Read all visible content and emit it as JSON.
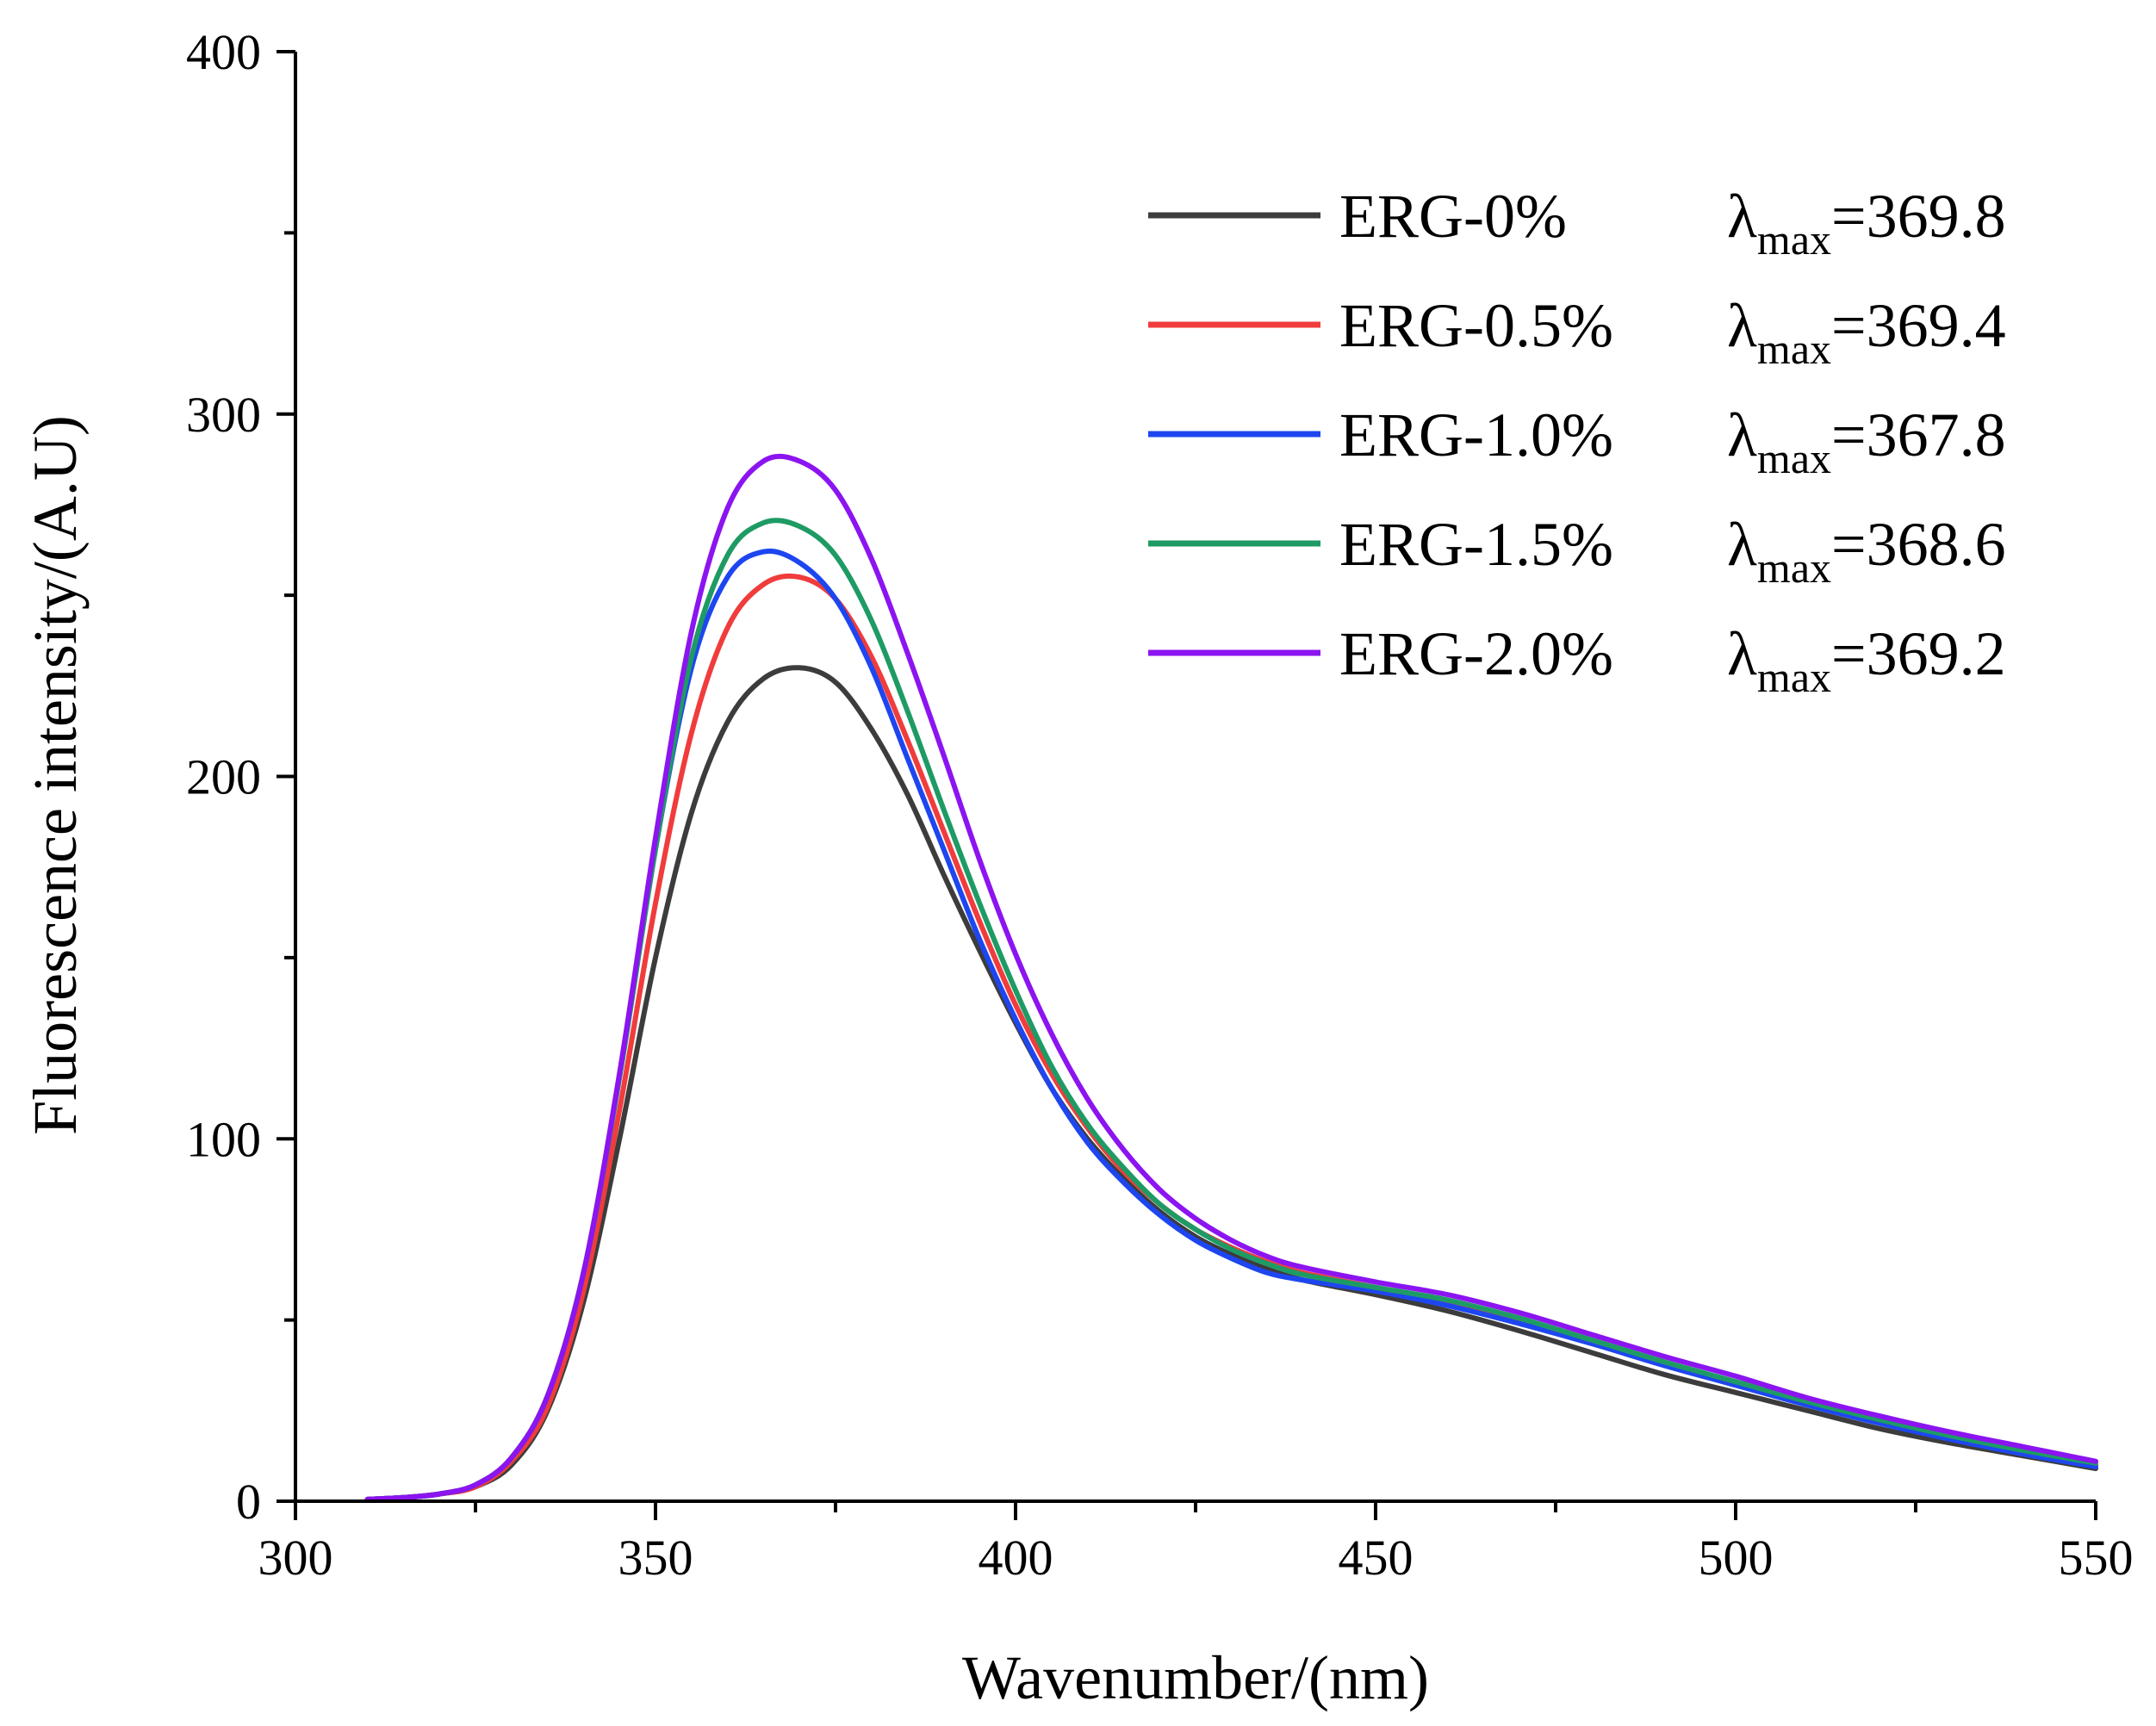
{
  "chart_data": {
    "type": "line",
    "title": "",
    "xlabel": "Wavenumber/(nm)",
    "ylabel": "Fluorescence intensity/(A.U)",
    "xlim": [
      300,
      550
    ],
    "ylim": [
      0,
      400
    ],
    "x_ticks": [
      300,
      350,
      400,
      450,
      500,
      550
    ],
    "x_tick_labels": [
      "300",
      "350",
      "400",
      "450",
      "500",
      "550"
    ],
    "y_ticks": [
      0,
      100,
      200,
      300,
      400
    ],
    "y_tick_labels": [
      "0",
      "100",
      "200",
      "300",
      "400"
    ],
    "x_minor_step": 25,
    "y_minor_step": 50,
    "legend_position": "top-right",
    "lambda_symbol": "λ",
    "lambda_subscript": "max",
    "x": [
      310,
      315,
      320,
      325,
      330,
      335,
      340,
      345,
      350,
      355,
      360,
      365,
      370,
      375,
      380,
      385,
      390,
      395,
      400,
      405,
      410,
      415,
      420,
      425,
      430,
      435,
      440,
      450,
      460,
      470,
      480,
      490,
      500,
      510,
      520,
      530,
      540,
      550
    ],
    "series": [
      {
        "name": "ERG-0%",
        "color": "#3c3c3c",
        "lambda_max": "369.8",
        "values": [
          0.5,
          1.0,
          2.0,
          4.0,
          10.0,
          25.0,
          55.0,
          100.0,
          150.0,
          190.0,
          215.0,
          227.0,
          230.0,
          226.0,
          213.0,
          195.0,
          173.0,
          152.0,
          132.0,
          114.0,
          100.0,
          89.0,
          80.0,
          73.0,
          68.0,
          64.0,
          61.0,
          57.0,
          52.5,
          47.0,
          41.0,
          35.0,
          30.0,
          25.0,
          20.0,
          16.0,
          12.5,
          9.0
        ]
      },
      {
        "name": "ERG-0.5%",
        "color": "#f03c3c",
        "lambda_max": "369.4",
        "values": [
          0.5,
          1.0,
          2.0,
          4.0,
          11.0,
          26.0,
          58.0,
          108.0,
          165.0,
          212.0,
          241.0,
          253.0,
          255.0,
          249.0,
          233.0,
          210.0,
          185.0,
          160.0,
          137.0,
          118.0,
          103.0,
          91.0,
          82.0,
          75.0,
          70.0,
          66.0,
          63.0,
          59.0,
          55.0,
          50.0,
          44.0,
          38.0,
          32.5,
          27.0,
          22.0,
          17.5,
          13.5,
          10.0
        ]
      },
      {
        "name": "ERG-1.0%",
        "color": "#1e46f0",
        "lambda_max": "367.8",
        "values": [
          0.5,
          1.0,
          2.0,
          4.5,
          12.0,
          29.0,
          63.0,
          117.0,
          180.0,
          230.0,
          255.0,
          262.0,
          259.0,
          249.0,
          230.0,
          205.0,
          180.0,
          155.0,
          133.0,
          114.0,
          99.0,
          88.0,
          79.0,
          72.0,
          67.0,
          63.0,
          61.0,
          58.0,
          54.0,
          49.0,
          43.5,
          37.5,
          32.0,
          26.5,
          21.5,
          17.0,
          13.0,
          9.5
        ]
      },
      {
        "name": "ERG-1.5%",
        "color": "#1e9b64",
        "lambda_max": "368.6",
        "values": [
          0.5,
          1.0,
          2.0,
          4.5,
          12.0,
          29.0,
          63.0,
          117.0,
          180.0,
          233.0,
          261.0,
          270.0,
          269.0,
          261.0,
          243.0,
          218.0,
          191.0,
          165.0,
          141.0,
          120.0,
          104.0,
          92.0,
          82.0,
          75.0,
          69.5,
          65.5,
          62.5,
          59.0,
          55.5,
          50.5,
          44.5,
          38.5,
          33.0,
          27.5,
          22.5,
          18.0,
          14.0,
          10.5
        ]
      },
      {
        "name": "ERG-2.0%",
        "color": "#8c14f0",
        "lambda_max": "369.2",
        "values": [
          0.5,
          1.0,
          2.0,
          4.5,
          12.0,
          29.0,
          63.0,
          118.0,
          183.0,
          240.0,
          274.0,
          287.0,
          287.0,
          279.0,
          260.0,
          234.0,
          206.0,
          177.0,
          151.0,
          129.0,
          111.0,
          97.0,
          86.0,
          78.0,
          72.0,
          67.5,
          64.5,
          60.5,
          57.0,
          52.0,
          46.0,
          40.0,
          34.5,
          28.5,
          23.5,
          19.0,
          15.0,
          11.0
        ]
      }
    ]
  }
}
